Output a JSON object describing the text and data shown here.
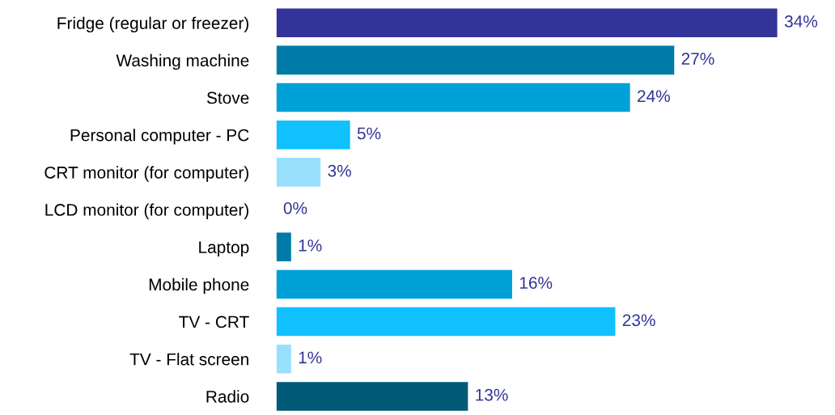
{
  "chart_data": {
    "type": "bar",
    "orientation": "horizontal",
    "categories": [
      "Fridge (regular or freezer)",
      "Washing machine",
      "Stove",
      "Personal computer - PC",
      "CRT monitor (for computer)",
      "LCD monitor (for computer)",
      "Laptop",
      "Mobile phone",
      "TV - CRT",
      "TV - Flat screen",
      "Radio"
    ],
    "values": [
      34,
      27,
      24,
      5,
      3,
      0,
      1,
      16,
      23,
      1,
      13
    ],
    "value_labels": [
      "34%",
      "27%",
      "24%",
      "5%",
      "3%",
      "0%",
      "1%",
      "16%",
      "23%",
      "1%",
      "13%"
    ],
    "colors": [
      "#333399",
      "#007ba7",
      "#00a0d8",
      "#10c0ff",
      "#99e0ff",
      "#005a78",
      "#007ba7",
      "#00a0d8",
      "#10c0ff",
      "#99e0ff",
      "#005a78"
    ],
    "grid": false,
    "legend": false
  }
}
